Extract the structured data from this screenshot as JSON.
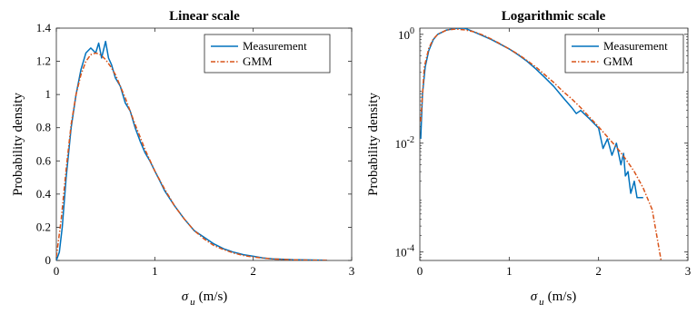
{
  "chart_data": [
    {
      "type": "line",
      "title": "Linear scale",
      "xlabel_symbol": "σ",
      "xlabel_subscript": "u",
      "xlabel_unit": "(m/s)",
      "ylabel": "Probability density",
      "xlim": [
        0,
        3
      ],
      "ylim": [
        0,
        1.4
      ],
      "yscale": "linear",
      "x_ticks": [
        0,
        1,
        2,
        3
      ],
      "x_tick_labels": [
        "0",
        "1",
        "2",
        "3"
      ],
      "y_ticks": [
        0,
        0.2,
        0.4,
        0.6,
        0.8,
        1.0,
        1.2,
        1.4
      ],
      "y_tick_labels": [
        "0",
        "0.2",
        "0.4",
        "0.6",
        "0.8",
        "1",
        "1.2",
        "1.4"
      ],
      "legend_position": "top-right",
      "grid": false,
      "series": [
        {
          "name": "Measurement",
          "color": "#0072BD",
          "style": "solid",
          "x": [
            0.0,
            0.03,
            0.06,
            0.1,
            0.15,
            0.2,
            0.25,
            0.3,
            0.35,
            0.4,
            0.43,
            0.46,
            0.5,
            0.53,
            0.56,
            0.6,
            0.65,
            0.7,
            0.75,
            0.8,
            0.85,
            0.9,
            0.95,
            1.0,
            1.05,
            1.1,
            1.2,
            1.3,
            1.4,
            1.5,
            1.6,
            1.7,
            1.8,
            1.9,
            2.0,
            2.1,
            2.2,
            2.4,
            2.6,
            2.75
          ],
          "y": [
            0.0,
            0.05,
            0.2,
            0.5,
            0.8,
            1.0,
            1.15,
            1.25,
            1.28,
            1.25,
            1.31,
            1.22,
            1.32,
            1.22,
            1.18,
            1.1,
            1.05,
            0.95,
            0.9,
            0.8,
            0.72,
            0.65,
            0.6,
            0.54,
            0.48,
            0.42,
            0.33,
            0.25,
            0.18,
            0.14,
            0.1,
            0.07,
            0.05,
            0.035,
            0.025,
            0.015,
            0.01,
            0.005,
            0.003,
            0.001
          ]
        },
        {
          "name": "GMM",
          "color": "#D95319",
          "style": "dash-dot",
          "x": [
            0.0,
            0.05,
            0.1,
            0.15,
            0.2,
            0.25,
            0.3,
            0.35,
            0.4,
            0.45,
            0.5,
            0.55,
            0.6,
            0.7,
            0.8,
            0.9,
            1.0,
            1.1,
            1.2,
            1.3,
            1.4,
            1.5,
            1.6,
            1.7,
            1.8,
            1.9,
            2.0,
            2.2,
            2.4,
            2.6,
            2.75
          ],
          "y": [
            0.02,
            0.25,
            0.55,
            0.82,
            1.0,
            1.12,
            1.2,
            1.24,
            1.25,
            1.24,
            1.21,
            1.17,
            1.12,
            0.98,
            0.82,
            0.67,
            0.54,
            0.43,
            0.33,
            0.25,
            0.18,
            0.13,
            0.09,
            0.065,
            0.045,
            0.03,
            0.02,
            0.009,
            0.004,
            0.0015,
            0.0005
          ]
        }
      ]
    },
    {
      "type": "line",
      "title": "Logarithmic scale",
      "xlabel_symbol": "σ",
      "xlabel_subscript": "u",
      "xlabel_unit": "(m/s)",
      "ylabel": "Probability density",
      "xlim": [
        0,
        3
      ],
      "ylim": [
        7e-05,
        1.3
      ],
      "yscale": "log",
      "x_ticks": [
        0,
        1,
        2,
        3
      ],
      "x_tick_labels": [
        "0",
        "1",
        "2",
        "3"
      ],
      "y_ticks": [
        0.0001,
        0.01,
        1
      ],
      "y_tick_base": "10",
      "y_tick_exponents": [
        "-4",
        "-2",
        "0"
      ],
      "legend_position": "top-right",
      "grid": false,
      "series": [
        {
          "name": "Measurement",
          "color": "#0072BD",
          "style": "solid",
          "x": [
            0.01,
            0.03,
            0.06,
            0.1,
            0.15,
            0.2,
            0.3,
            0.4,
            0.5,
            0.6,
            0.7,
            0.8,
            0.9,
            1.0,
            1.1,
            1.2,
            1.3,
            1.4,
            1.5,
            1.6,
            1.7,
            1.75,
            1.8,
            1.9,
            2.0,
            2.05,
            2.1,
            2.15,
            2.2,
            2.25,
            2.28,
            2.3,
            2.33,
            2.36,
            2.4,
            2.43,
            2.45,
            2.5
          ],
          "y": [
            0.012,
            0.08,
            0.25,
            0.5,
            0.8,
            1.0,
            1.2,
            1.28,
            1.3,
            1.12,
            0.95,
            0.8,
            0.66,
            0.54,
            0.42,
            0.32,
            0.23,
            0.16,
            0.11,
            0.07,
            0.045,
            0.035,
            0.04,
            0.028,
            0.019,
            0.008,
            0.012,
            0.006,
            0.01,
            0.004,
            0.0065,
            0.0025,
            0.003,
            0.0012,
            0.002,
            0.001,
            0.001,
            0.001
          ]
        },
        {
          "name": "GMM",
          "color": "#D95319",
          "style": "dash-dot",
          "x": [
            0.01,
            0.05,
            0.1,
            0.15,
            0.2,
            0.3,
            0.4,
            0.5,
            0.6,
            0.7,
            0.8,
            0.9,
            1.0,
            1.1,
            1.2,
            1.3,
            1.4,
            1.5,
            1.6,
            1.7,
            1.8,
            1.9,
            2.0,
            2.1,
            2.2,
            2.3,
            2.4,
            2.5,
            2.6,
            2.7
          ],
          "y": [
            0.025,
            0.25,
            0.55,
            0.82,
            1.0,
            1.2,
            1.25,
            1.21,
            1.12,
            0.98,
            0.82,
            0.67,
            0.54,
            0.43,
            0.33,
            0.25,
            0.18,
            0.13,
            0.09,
            0.065,
            0.045,
            0.03,
            0.02,
            0.013,
            0.0085,
            0.0052,
            0.003,
            0.0015,
            0.0006,
            7e-05
          ]
        }
      ]
    }
  ]
}
